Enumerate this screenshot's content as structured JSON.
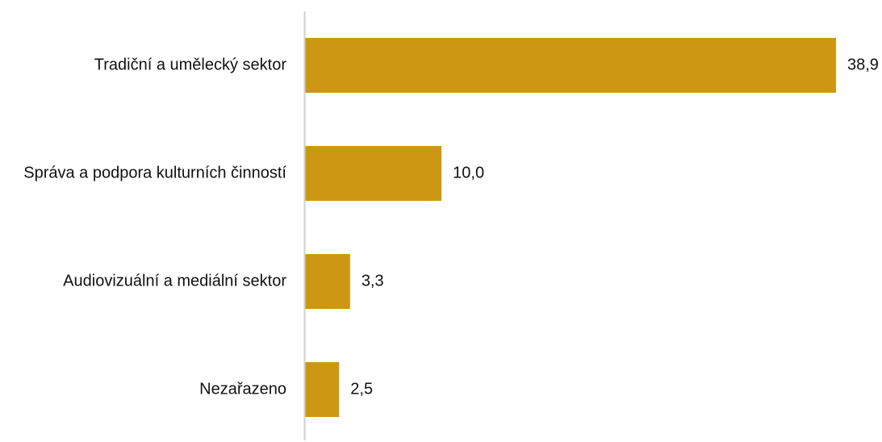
{
  "chart_data": {
    "type": "bar",
    "orientation": "horizontal",
    "categories": [
      "Tradiční a umělecký sektor",
      "Správa a podpora kulturních činností",
      "Audiovizuální a mediální sektor",
      "Nezařazeno"
    ],
    "values": [
      38.9,
      10.0,
      3.3,
      2.5
    ],
    "value_labels": [
      "38,9",
      "10,0",
      "3,3",
      "2,5"
    ],
    "title": "",
    "xlabel": "",
    "ylabel": "",
    "xlim": [
      0,
      38.9
    ],
    "grid": false,
    "legend": "none",
    "bar_color": "#CC9814",
    "axis_color": "#D0D0D0"
  }
}
